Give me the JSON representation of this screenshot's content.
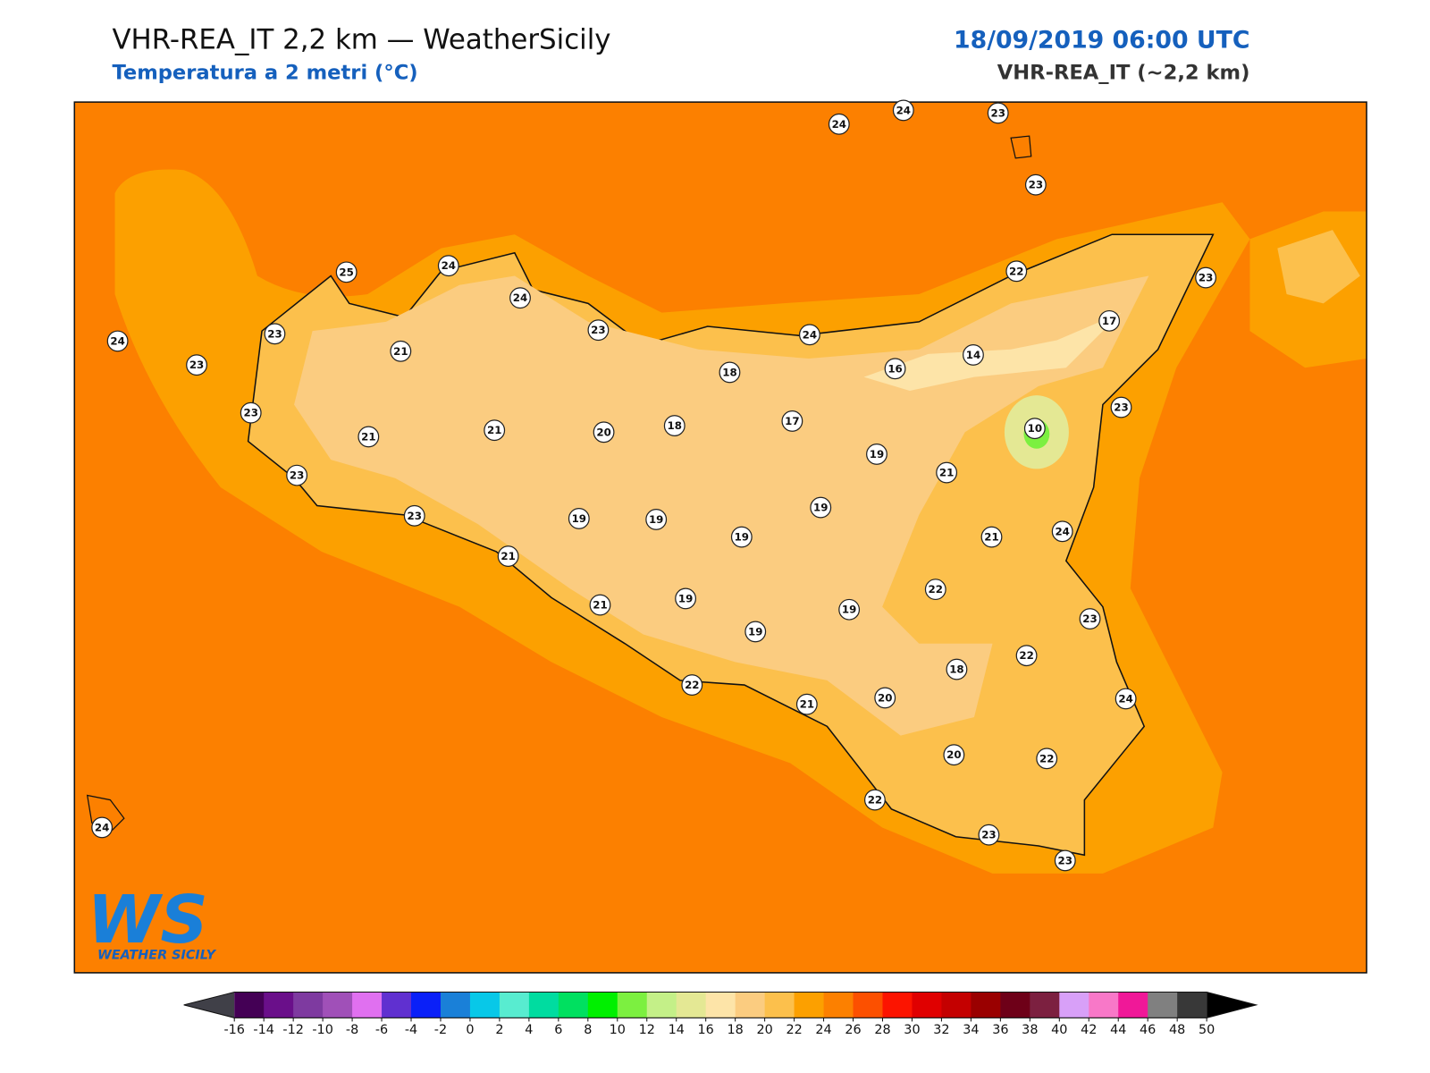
{
  "header": {
    "title": "VHR-REA_IT 2,2 km — WeatherSicily",
    "subtitle": "Temperatura a 2 metri (°C)",
    "datetime": "18/09/2019 06:00 UTC",
    "model": "VHR-REA_IT (~2,2 km)"
  },
  "map": {
    "stations": [
      24,
      24,
      23,
      23,
      25,
      24,
      24,
      23,
      24,
      23,
      23,
      21,
      23,
      21,
      23,
      21,
      20,
      18,
      18,
      17,
      24,
      16,
      14,
      22,
      23,
      17,
      10,
      23,
      19,
      21,
      19,
      21,
      24,
      19,
      19,
      19,
      23,
      21,
      21,
      19,
      19,
      19,
      22,
      23,
      22,
      18,
      24,
      22,
      21,
      20,
      20,
      22,
      22,
      23,
      23,
      24
    ]
  },
  "colorbar": {
    "ticks": [
      -16,
      -14,
      -12,
      -10,
      -8,
      -6,
      -4,
      -2,
      0,
      2,
      4,
      6,
      8,
      10,
      12,
      14,
      16,
      18,
      20,
      22,
      24,
      26,
      28,
      30,
      32,
      34,
      36,
      38,
      40,
      42,
      44,
      46,
      48,
      50
    ],
    "colors": [
      "#440055",
      "#6a0f8a",
      "#7e3aa0",
      "#a050b8",
      "#e070f0",
      "#6030d0",
      "#0a20f8",
      "#1a80d8",
      "#08c8e8",
      "#58ecd0",
      "#00dca0",
      "#00e060",
      "#00f000",
      "#7cf040",
      "#c4f088",
      "#e4e894",
      "#fde4a8",
      "#fbcc80",
      "#fcc04c",
      "#fca000",
      "#fc8000",
      "#fc5000",
      "#fc1400",
      "#e00000",
      "#c40000",
      "#9a0000",
      "#6e0018",
      "#7c2040",
      "#d8a0f8",
      "#f878c8",
      "#f01898",
      "#808080",
      "#383838"
    ],
    "under_color": "#404048",
    "over_color": "#000000"
  },
  "logo": {
    "mark": "WS",
    "text": "WEATHER SICILY"
  }
}
